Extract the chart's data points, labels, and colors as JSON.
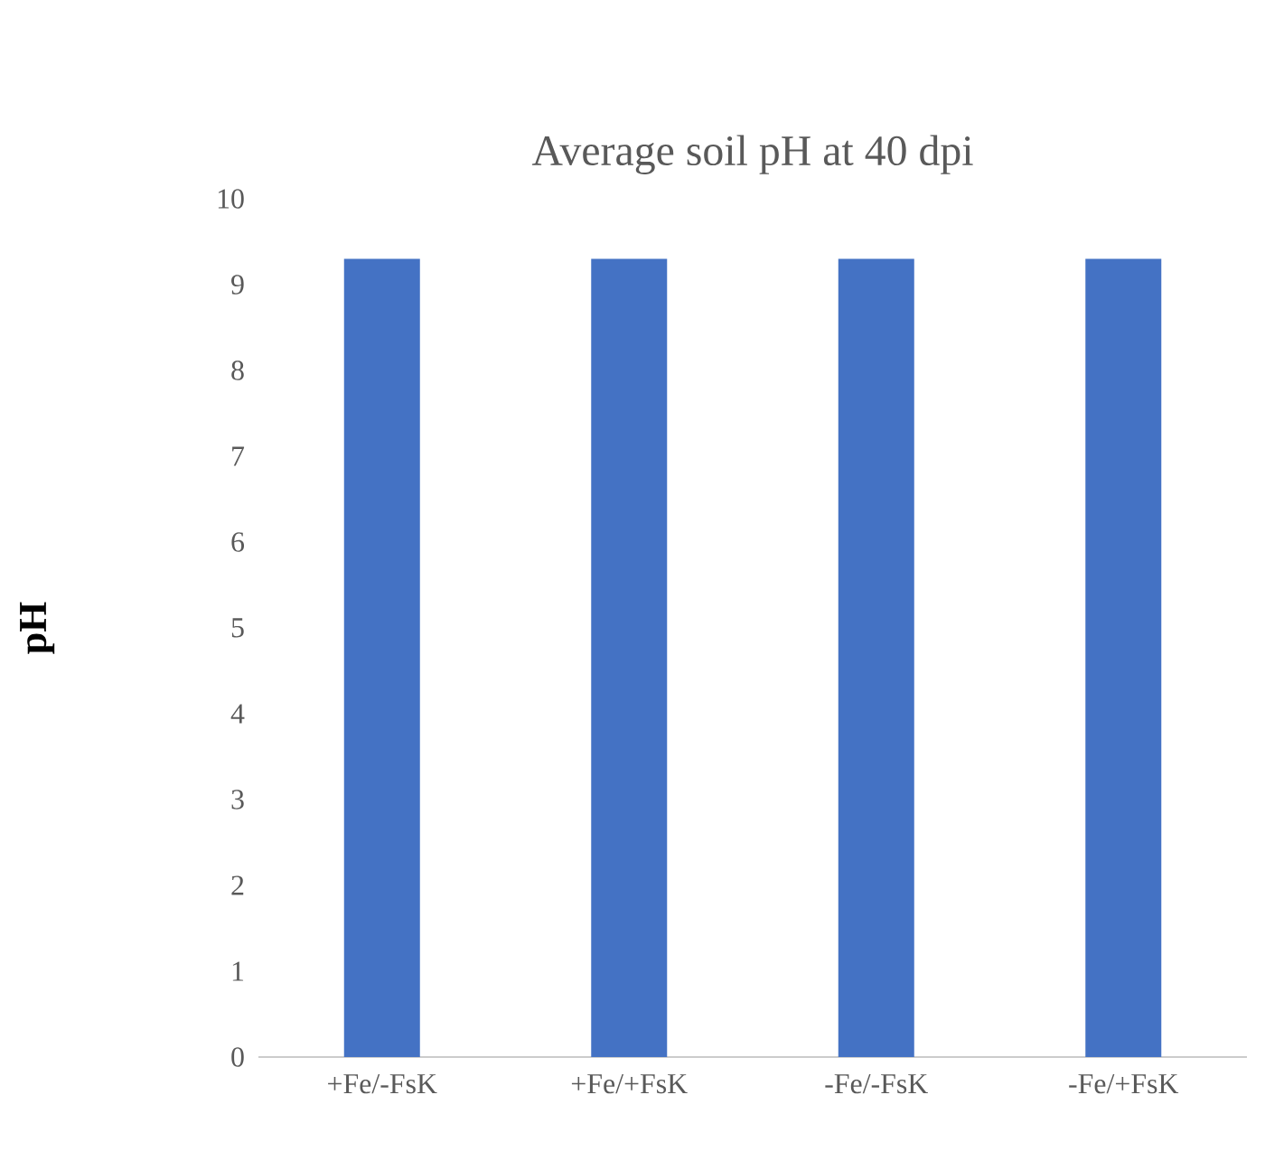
{
  "chart_data": {
    "type": "bar",
    "title": "Average soil pH at 40 dpi",
    "ylabel": "pH",
    "categories": [
      "+Fe/-FsK",
      "+Fe/+FsK",
      "-Fe/-FsK",
      "-Fe/+FsK"
    ],
    "values": [
      9.3,
      9.3,
      9.3,
      9.3
    ],
    "color": "#4472c4",
    "ylim": [
      0,
      10
    ],
    "yticks": [
      0,
      1,
      2,
      3,
      4,
      5,
      6,
      7,
      8,
      9,
      10
    ]
  }
}
